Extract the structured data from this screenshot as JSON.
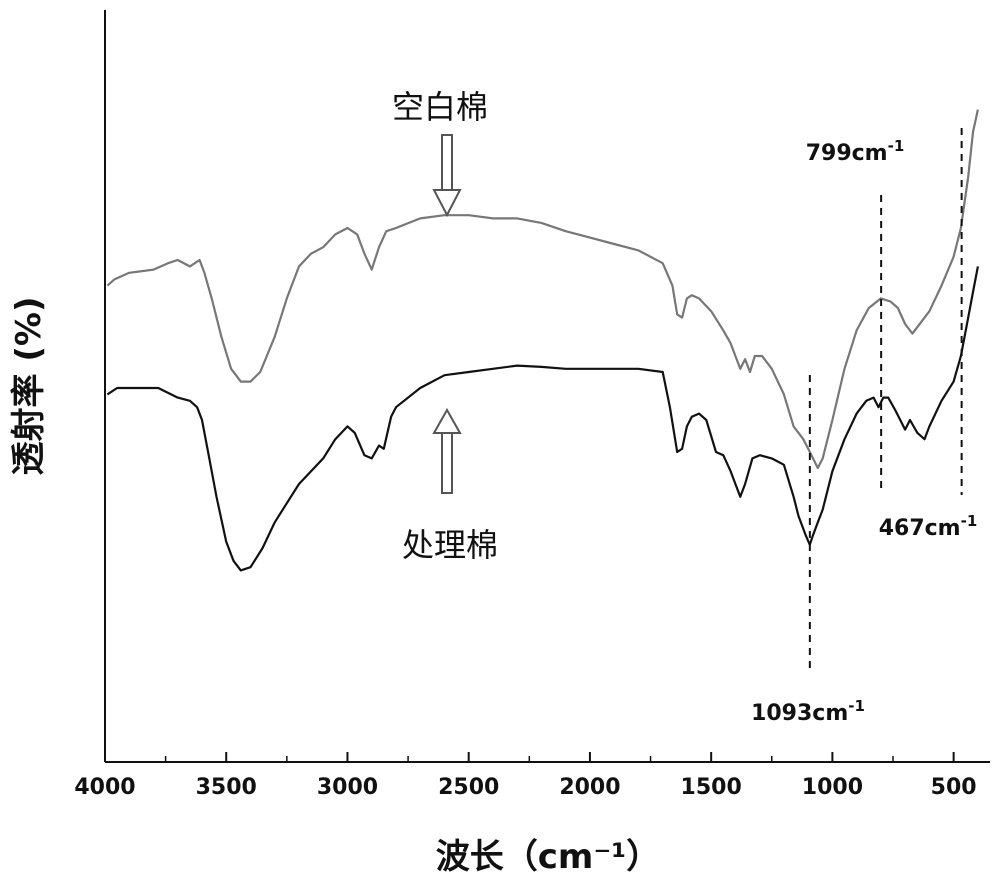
{
  "chart_data": {
    "type": "line",
    "xlabel": "波长（cm⁻¹）",
    "ylabel": "透射率 (%)",
    "xlim": [
      4000,
      350
    ],
    "ylim": [
      0,
      100
    ],
    "x_reversed": true,
    "x_ticks": [
      4000,
      3500,
      3000,
      2500,
      2000,
      1500,
      1000,
      500
    ],
    "show_y_ticks": false,
    "grid": false,
    "series": [
      {
        "name": "空白棉",
        "color": "#777777",
        "label_arrow": "down",
        "points": [
          [
            3990,
            71
          ],
          [
            3960,
            72
          ],
          [
            3900,
            73
          ],
          [
            3800,
            73.5
          ],
          [
            3740,
            74.5
          ],
          [
            3700,
            75
          ],
          [
            3650,
            74
          ],
          [
            3610,
            75
          ],
          [
            3590,
            73
          ],
          [
            3560,
            69
          ],
          [
            3520,
            63
          ],
          [
            3480,
            58
          ],
          [
            3440,
            56
          ],
          [
            3400,
            56
          ],
          [
            3360,
            57.5
          ],
          [
            3300,
            63
          ],
          [
            3250,
            69
          ],
          [
            3200,
            74
          ],
          [
            3150,
            76
          ],
          [
            3100,
            77
          ],
          [
            3050,
            79
          ],
          [
            3000,
            80
          ],
          [
            2960,
            79
          ],
          [
            2930,
            76
          ],
          [
            2900,
            73.5
          ],
          [
            2870,
            77
          ],
          [
            2840,
            79.5
          ],
          [
            2800,
            80
          ],
          [
            2700,
            81.5
          ],
          [
            2600,
            82
          ],
          [
            2500,
            82
          ],
          [
            2400,
            81.5
          ],
          [
            2300,
            81.5
          ],
          [
            2200,
            80.8
          ],
          [
            2100,
            79.5
          ],
          [
            2000,
            78.5
          ],
          [
            1900,
            77.5
          ],
          [
            1800,
            76.5
          ],
          [
            1700,
            74.5
          ],
          [
            1660,
            71
          ],
          [
            1640,
            66.5
          ],
          [
            1620,
            66
          ],
          [
            1600,
            69
          ],
          [
            1580,
            69.5
          ],
          [
            1550,
            69
          ],
          [
            1500,
            67
          ],
          [
            1450,
            64
          ],
          [
            1420,
            62
          ],
          [
            1400,
            60
          ],
          [
            1380,
            58
          ],
          [
            1360,
            59.5
          ],
          [
            1340,
            57.5
          ],
          [
            1320,
            60
          ],
          [
            1290,
            60
          ],
          [
            1250,
            58
          ],
          [
            1200,
            54
          ],
          [
            1160,
            49
          ],
          [
            1120,
            47
          ],
          [
            1100,
            45.5
          ],
          [
            1080,
            44
          ],
          [
            1060,
            42.5
          ],
          [
            1040,
            44
          ],
          [
            1000,
            50
          ],
          [
            950,
            58
          ],
          [
            900,
            64
          ],
          [
            850,
            67.5
          ],
          [
            800,
            69
          ],
          [
            760,
            68.5
          ],
          [
            730,
            67.5
          ],
          [
            700,
            65
          ],
          [
            670,
            63.5
          ],
          [
            630,
            65.5
          ],
          [
            600,
            67
          ],
          [
            550,
            71
          ],
          [
            500,
            75.5
          ],
          [
            470,
            80
          ],
          [
            440,
            88
          ],
          [
            420,
            95
          ],
          [
            400,
            98.5
          ]
        ]
      },
      {
        "name": "处理棉",
        "color": "#111111",
        "label_arrow": "up",
        "points": [
          [
            3990,
            54
          ],
          [
            3950,
            55
          ],
          [
            3850,
            55
          ],
          [
            3780,
            55
          ],
          [
            3700,
            53.5
          ],
          [
            3650,
            53
          ],
          [
            3620,
            52
          ],
          [
            3600,
            50
          ],
          [
            3570,
            44
          ],
          [
            3540,
            38
          ],
          [
            3500,
            31
          ],
          [
            3470,
            28
          ],
          [
            3440,
            26.5
          ],
          [
            3400,
            27
          ],
          [
            3350,
            30
          ],
          [
            3300,
            34
          ],
          [
            3250,
            37
          ],
          [
            3200,
            40
          ],
          [
            3100,
            44
          ],
          [
            3050,
            47
          ],
          [
            3000,
            49
          ],
          [
            2970,
            48
          ],
          [
            2930,
            44.5
          ],
          [
            2900,
            44
          ],
          [
            2870,
            46
          ],
          [
            2850,
            45.5
          ],
          [
            2820,
            50.5
          ],
          [
            2800,
            52
          ],
          [
            2700,
            55
          ],
          [
            2600,
            57
          ],
          [
            2500,
            57.5
          ],
          [
            2400,
            58
          ],
          [
            2300,
            58.5
          ],
          [
            2200,
            58.3
          ],
          [
            2100,
            58
          ],
          [
            2000,
            58
          ],
          [
            1900,
            58
          ],
          [
            1800,
            58
          ],
          [
            1700,
            57.5
          ],
          [
            1670,
            52
          ],
          [
            1640,
            45
          ],
          [
            1620,
            45.5
          ],
          [
            1600,
            49
          ],
          [
            1580,
            50.5
          ],
          [
            1550,
            51
          ],
          [
            1520,
            50
          ],
          [
            1480,
            45
          ],
          [
            1450,
            44.5
          ],
          [
            1420,
            42
          ],
          [
            1400,
            40
          ],
          [
            1380,
            38
          ],
          [
            1360,
            40
          ],
          [
            1330,
            44
          ],
          [
            1300,
            44.5
          ],
          [
            1250,
            44
          ],
          [
            1200,
            43
          ],
          [
            1160,
            38
          ],
          [
            1140,
            35
          ],
          [
            1110,
            32
          ],
          [
            1093,
            30.5
          ],
          [
            1080,
            32
          ],
          [
            1060,
            34
          ],
          [
            1040,
            36
          ],
          [
            1000,
            42
          ],
          [
            950,
            47
          ],
          [
            900,
            51
          ],
          [
            860,
            53
          ],
          [
            830,
            53.5
          ],
          [
            810,
            52
          ],
          [
            790,
            53.5
          ],
          [
            770,
            53.5
          ],
          [
            740,
            51.5
          ],
          [
            700,
            48.5
          ],
          [
            680,
            50
          ],
          [
            650,
            48
          ],
          [
            620,
            47
          ],
          [
            600,
            49
          ],
          [
            550,
            53
          ],
          [
            500,
            56
          ],
          [
            470,
            60
          ],
          [
            440,
            66
          ],
          [
            420,
            70
          ],
          [
            400,
            74
          ]
        ]
      }
    ],
    "annotations": [
      {
        "text": "799cm",
        "sup": "-1",
        "x": 799
      },
      {
        "text": "467cm",
        "sup": "-1",
        "x": 467
      },
      {
        "text": "1093cm",
        "sup": "-1",
        "x": 1093
      }
    ]
  }
}
